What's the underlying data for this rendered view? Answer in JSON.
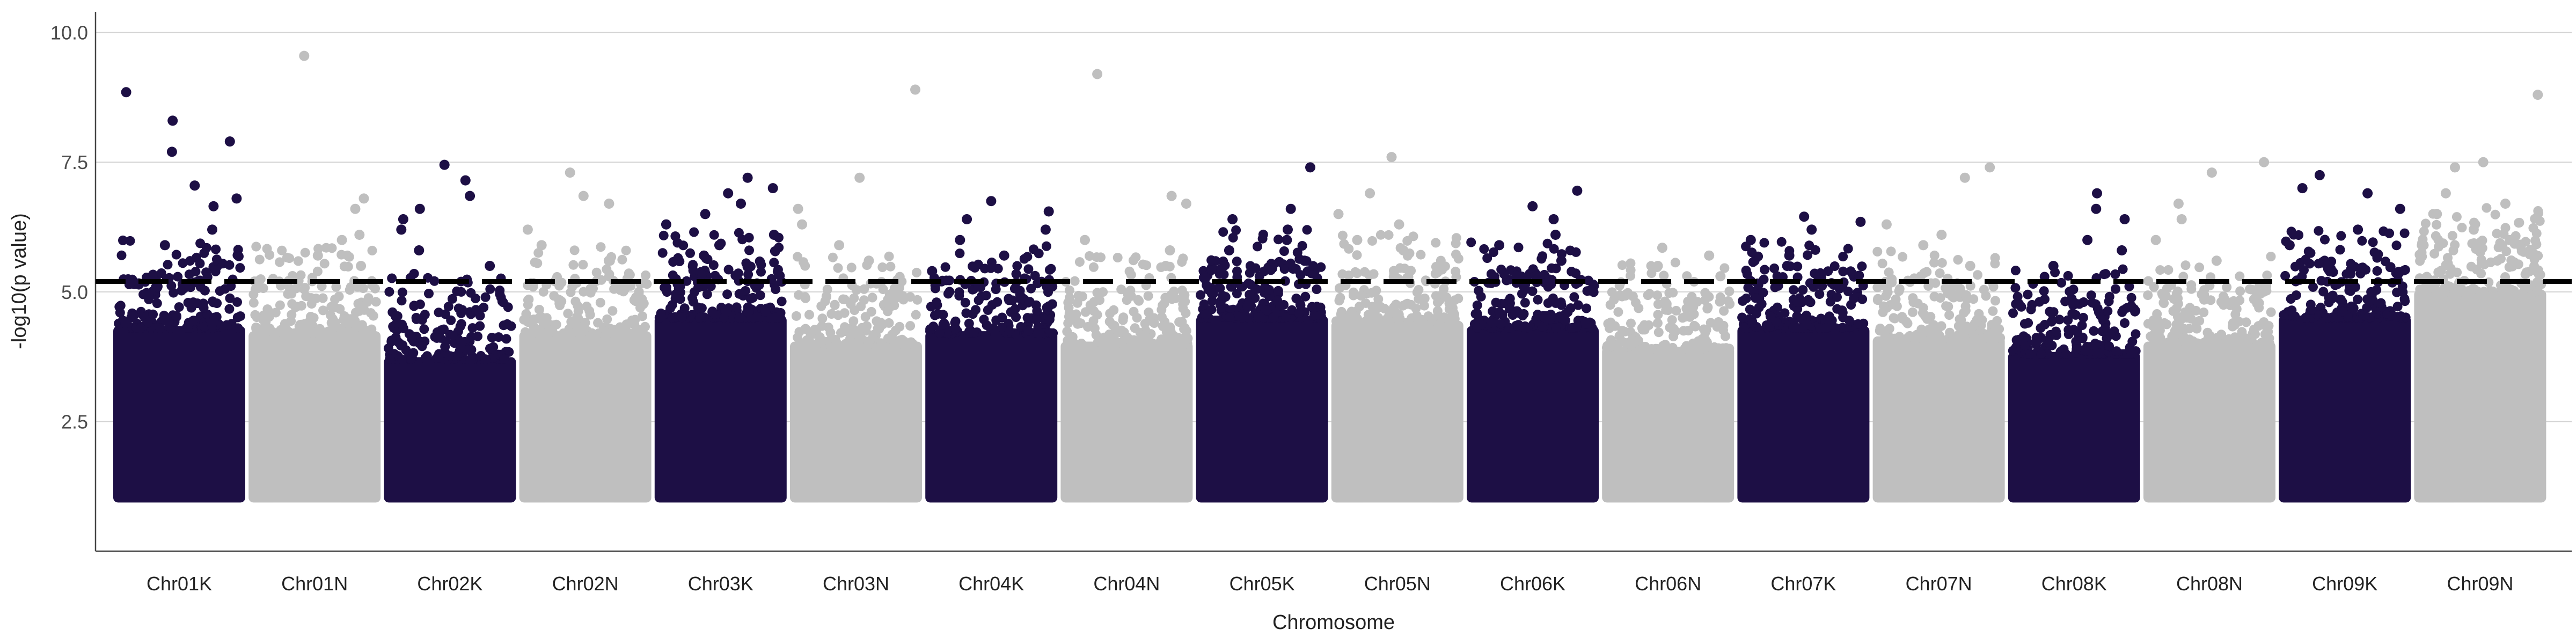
{
  "chart_data": {
    "type": "scatter",
    "title": "",
    "xlabel": "Chromosome",
    "ylabel": "-log10(p value)",
    "ylim": [
      0,
      10.4
    ],
    "y_ticks": [
      "2.5",
      "5.0",
      "7.5",
      "10.0"
    ],
    "y_tick_values": [
      2.5,
      5.0,
      7.5,
      10.0
    ],
    "grid": "horizontal major lines only",
    "legend": "none",
    "threshold": {
      "value": 5.2,
      "style": "dashed",
      "color": "#000000"
    },
    "colors": {
      "K": "#1d0f45",
      "N": "#bfbfbf"
    },
    "categories": [
      "Chr01K",
      "Chr01N",
      "Chr02K",
      "Chr02N",
      "Chr03K",
      "Chr03N",
      "Chr04K",
      "Chr04N",
      "Chr05K",
      "Chr05N",
      "Chr06K",
      "Chr06N",
      "Chr07K",
      "Chr07N",
      "Chr08K",
      "Chr08N",
      "Chr09K",
      "Chr09N"
    ],
    "series": [
      {
        "chromosome": "Chr01K",
        "color": "#1d0f45",
        "body_top": 4.3,
        "top_hits": [
          8.3,
          8.85,
          7.9,
          7.7,
          7.05,
          6.8,
          6.65,
          6.2,
          5.9
        ]
      },
      {
        "chromosome": "Chr01N",
        "color": "#bfbfbf",
        "body_top": 4.2,
        "top_hits": [
          9.55,
          6.8,
          6.6,
          6.1,
          6.0,
          5.7,
          5.5
        ]
      },
      {
        "chromosome": "Chr02K",
        "color": "#1d0f45",
        "body_top": 3.7,
        "top_hits": [
          7.45,
          7.15,
          6.85,
          6.6,
          6.4,
          6.2,
          5.8,
          5.5
        ]
      },
      {
        "chromosome": "Chr02N",
        "color": "#bfbfbf",
        "body_top": 4.2,
        "top_hits": [
          7.3,
          6.85,
          6.7,
          6.2,
          5.9,
          5.6
        ]
      },
      {
        "chromosome": "Chr03K",
        "color": "#1d0f45",
        "body_top": 4.5,
        "top_hits": [
          7.2,
          7.0,
          6.9,
          6.7,
          6.5,
          6.3,
          6.1,
          5.9,
          5.7
        ]
      },
      {
        "chromosome": "Chr03N",
        "color": "#bfbfbf",
        "body_top": 4.0,
        "top_hits": [
          8.9,
          7.2,
          6.6,
          6.3,
          5.9,
          5.6
        ]
      },
      {
        "chromosome": "Chr04K",
        "color": "#1d0f45",
        "body_top": 4.2,
        "top_hits": [
          6.75,
          6.55,
          6.4,
          6.2,
          6.0,
          5.7,
          5.4
        ]
      },
      {
        "chromosome": "Chr04N",
        "color": "#bfbfbf",
        "body_top": 4.0,
        "top_hits": [
          9.2,
          6.85,
          6.7,
          6.0,
          5.8,
          5.5
        ]
      },
      {
        "chromosome": "Chr05K",
        "color": "#1d0f45",
        "body_top": 4.5,
        "top_hits": [
          7.4,
          6.6,
          6.4,
          6.2,
          6.0,
          5.8,
          5.6
        ]
      },
      {
        "chromosome": "Chr05N",
        "color": "#bfbfbf",
        "body_top": 4.4,
        "top_hits": [
          7.6,
          6.9,
          6.5,
          6.3,
          6.0,
          5.8
        ]
      },
      {
        "chromosome": "Chr06K",
        "color": "#1d0f45",
        "body_top": 4.3,
        "top_hits": [
          6.95,
          6.65,
          6.4,
          6.1,
          5.9,
          5.6
        ]
      },
      {
        "chromosome": "Chr06N",
        "color": "#bfbfbf",
        "body_top": 3.9,
        "top_hits": [
          5.85,
          5.7,
          5.5,
          5.3
        ]
      },
      {
        "chromosome": "Chr07K",
        "color": "#1d0f45",
        "body_top": 4.3,
        "top_hits": [
          6.45,
          6.35,
          6.2,
          6.0,
          5.7,
          5.5
        ]
      },
      {
        "chromosome": "Chr07N",
        "color": "#bfbfbf",
        "body_top": 4.1,
        "top_hits": [
          7.4,
          7.2,
          6.3,
          6.1,
          5.9,
          5.5
        ]
      },
      {
        "chromosome": "Chr08K",
        "color": "#1d0f45",
        "body_top": 3.8,
        "top_hits": [
          6.9,
          6.6,
          6.4,
          6.0,
          5.8,
          5.5
        ]
      },
      {
        "chromosome": "Chr08N",
        "color": "#bfbfbf",
        "body_top": 4.0,
        "top_hits": [
          7.5,
          7.3,
          6.7,
          6.4,
          6.0,
          5.6
        ]
      },
      {
        "chromosome": "Chr09K",
        "color": "#1d0f45",
        "body_top": 4.5,
        "top_hits": [
          7.25,
          7.0,
          6.9,
          6.6,
          6.2,
          5.9
        ]
      },
      {
        "chromosome": "Chr09N",
        "color": "#bfbfbf",
        "body_top": 5.0,
        "top_hits": [
          8.8,
          7.5,
          7.4,
          6.9,
          6.7,
          6.5,
          6.2,
          6.0
        ]
      }
    ]
  }
}
